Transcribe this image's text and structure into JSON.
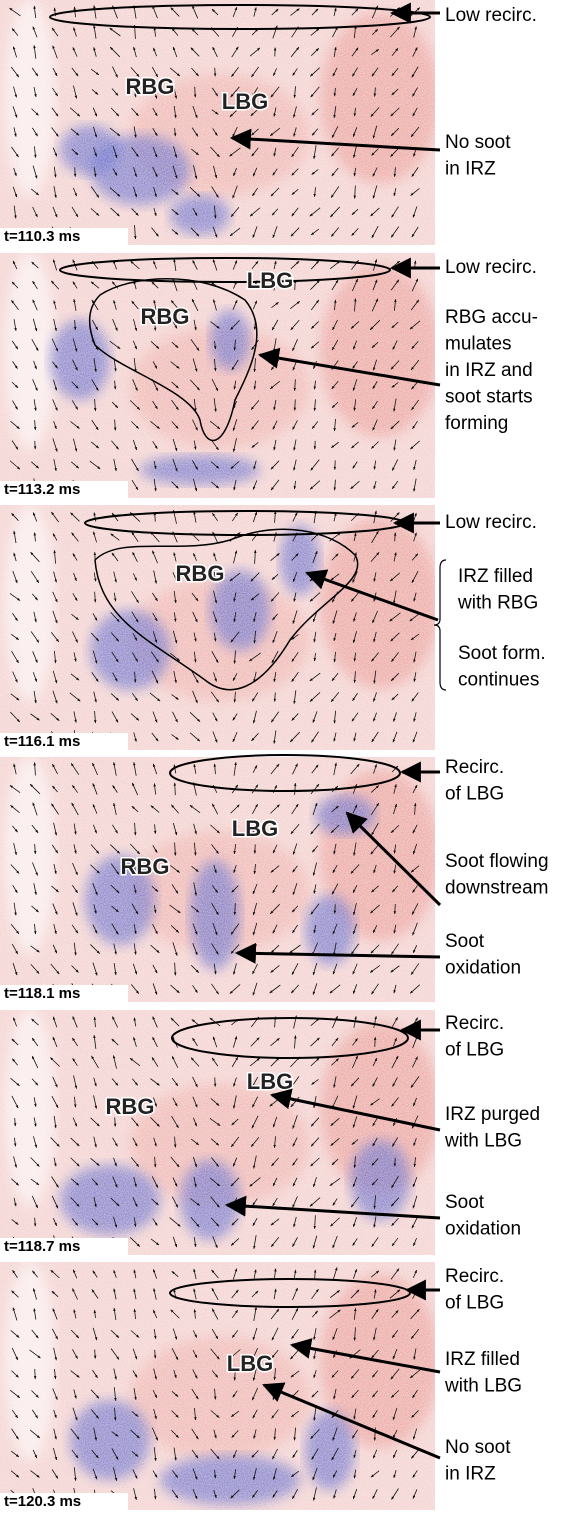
{
  "panels": [
    {
      "time": "t=110.3 ms",
      "labels": [
        "RBG",
        "LBG"
      ],
      "notes": [
        {
          "lines": [
            "Low recirc."
          ]
        },
        {
          "lines": [
            "No soot",
            "in IRZ"
          ]
        }
      ]
    },
    {
      "time": "t=113.2 ms",
      "labels": [
        "RBG",
        "LBG"
      ],
      "notes": [
        {
          "lines": [
            "Low recirc."
          ]
        },
        {
          "lines": [
            "RBG accu-",
            "mulates",
            "in IRZ and",
            "soot starts",
            "forming"
          ]
        }
      ]
    },
    {
      "time": "t=116.1 ms",
      "labels": [
        "RBG"
      ],
      "notes": [
        {
          "lines": [
            "Low recirc."
          ]
        },
        {
          "lines": [
            "IRZ filled",
            "with RBG"
          ]
        },
        {
          "lines": [
            "Soot form.",
            "continues"
          ]
        }
      ]
    },
    {
      "time": "t=118.1 ms",
      "labels": [
        "LBG",
        "RBG"
      ],
      "notes": [
        {
          "lines": [
            "Recirc.",
            "of LBG"
          ]
        },
        {
          "lines": [
            "Soot flowing",
            "downstream"
          ]
        },
        {
          "lines": [
            "Soot",
            "oxidation"
          ]
        }
      ]
    },
    {
      "time": "t=118.7 ms",
      "labels": [
        "LBG",
        "RBG"
      ],
      "notes": [
        {
          "lines": [
            "Recirc.",
            "of LBG"
          ]
        },
        {
          "lines": [
            "IRZ purged",
            "with LBG"
          ]
        },
        {
          "lines": [
            "Soot",
            "oxidation"
          ]
        }
      ]
    },
    {
      "time": "t=120.3 ms",
      "labels": [
        "LBG"
      ],
      "notes": [
        {
          "lines": [
            "Recirc.",
            "of LBG"
          ]
        },
        {
          "lines": [
            "IRZ filled",
            "with LBG"
          ]
        },
        {
          "lines": [
            "No soot",
            "in IRZ"
          ]
        }
      ]
    }
  ]
}
